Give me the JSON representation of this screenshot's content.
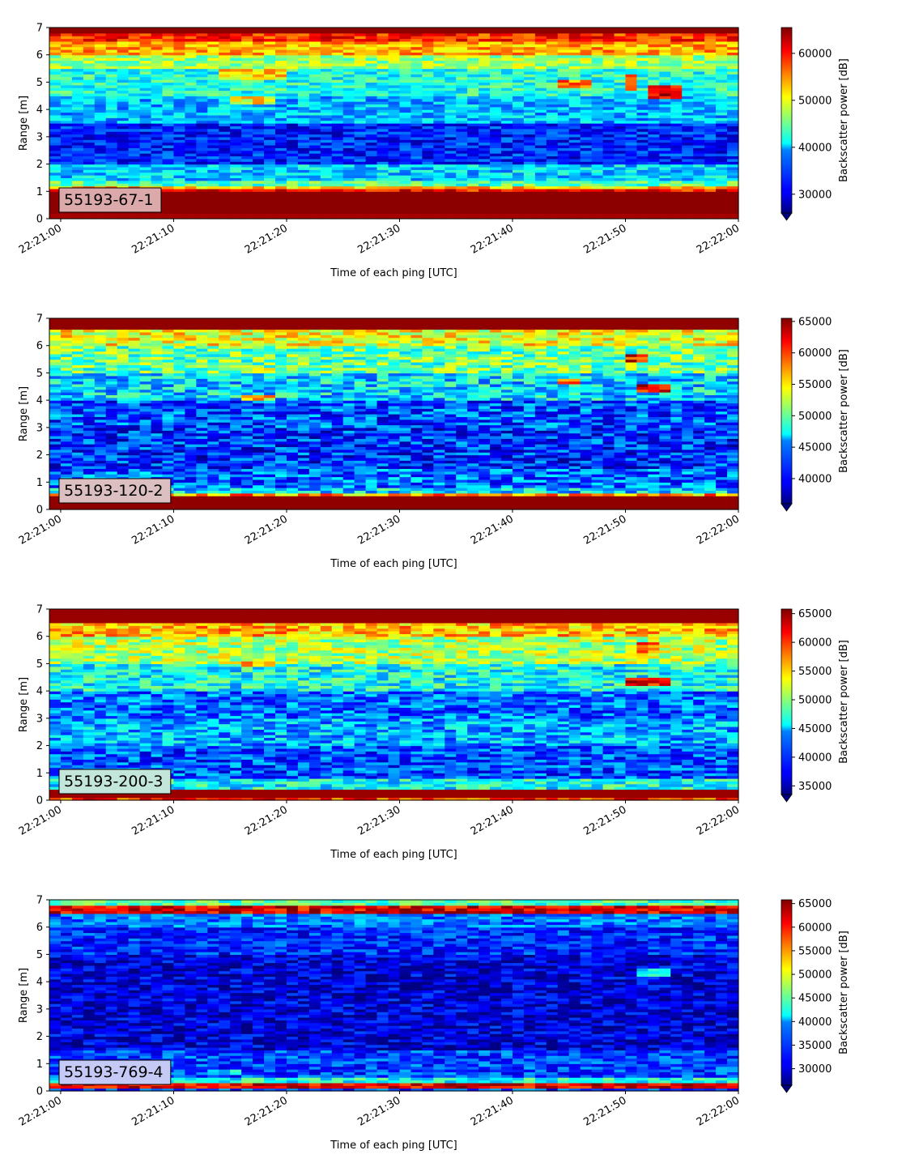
{
  "chart_data": [
    {
      "type": "heatmap",
      "label": "55193-67-1",
      "label_color": "#dba9a9",
      "xlabel": "Time of each ping [UTC]",
      "ylabel": "Range [m]",
      "x_ticks": [
        "22:21:00",
        "22:21:10",
        "22:21:20",
        "22:21:30",
        "22:21:40",
        "22:21:50",
        "22:22:00"
      ],
      "x_range": [
        "22:20:59",
        "22:22:00"
      ],
      "y_ticks": [
        0,
        1,
        2,
        3,
        4,
        5,
        6,
        7
      ],
      "ylim": [
        0,
        7
      ],
      "colorbar_label": "Backscatter power [dB]",
      "colorbar_ticks": [
        30000,
        40000,
        50000,
        60000
      ],
      "clim": [
        26000,
        65500
      ],
      "colormap": "jet",
      "extend": "min",
      "profile": [
        {
          "range": [
            0.0,
            0.2
          ],
          "value": 64000
        },
        {
          "range": [
            0.2,
            1.0
          ],
          "value": 65000
        },
        {
          "range": [
            1.0,
            1.1
          ],
          "value": 60000
        },
        {
          "range": [
            1.1,
            1.2
          ],
          "value": 53000
        },
        {
          "range": [
            1.2,
            1.4
          ],
          "value": 44000
        },
        {
          "range": [
            1.4,
            2.0
          ],
          "value": 39000
        },
        {
          "range": [
            2.0,
            3.5
          ],
          "value": 32000
        },
        {
          "range": [
            3.5,
            4.5
          ],
          "value": 38000
        },
        {
          "range": [
            4.5,
            5.5
          ],
          "value": 42000
        },
        {
          "range": [
            5.5,
            6.0
          ],
          "value": 47000
        },
        {
          "range": [
            6.0,
            6.5
          ],
          "value": 54000
        },
        {
          "range": [
            6.5,
            6.8
          ],
          "value": 59000
        },
        {
          "range": [
            6.8,
            7.0
          ],
          "value": 65000
        }
      ],
      "patches": [
        {
          "time": [
            "22:21:14",
            "22:21:20"
          ],
          "range": [
            5.1,
            5.5
          ],
          "value": 52000
        },
        {
          "time": [
            "22:21:15",
            "22:21:19"
          ],
          "range": [
            4.2,
            4.5
          ],
          "value": 51000
        },
        {
          "time": [
            "22:21:44",
            "22:21:47"
          ],
          "range": [
            4.8,
            5.1
          ],
          "value": 56000
        },
        {
          "time": [
            "22:21:50",
            "22:21:51"
          ],
          "range": [
            4.7,
            5.3
          ],
          "value": 59000
        },
        {
          "time": [
            "22:21:52",
            "22:21:55"
          ],
          "range": [
            4.4,
            4.9
          ],
          "value": 62000
        }
      ]
    },
    {
      "type": "heatmap",
      "label": "55193-120-2",
      "label_color": "#dcbfc1",
      "xlabel": "Time of each ping [UTC]",
      "ylabel": "Range [m]",
      "x_ticks": [
        "22:21:00",
        "22:21:10",
        "22:21:20",
        "22:21:30",
        "22:21:40",
        "22:21:50",
        "22:22:00"
      ],
      "x_range": [
        "22:20:59",
        "22:22:00"
      ],
      "y_ticks": [
        0,
        1,
        2,
        3,
        4,
        5,
        6,
        7
      ],
      "ylim": [
        0,
        7
      ],
      "colorbar_label": "Backscatter power [dB]",
      "colorbar_ticks": [
        40000,
        45000,
        50000,
        55000,
        60000,
        65000
      ],
      "clim": [
        36000,
        65500
      ],
      "colormap": "jet",
      "extend": "min",
      "profile": [
        {
          "range": [
            0.0,
            0.5
          ],
          "value": 65000
        },
        {
          "range": [
            0.5,
            0.6
          ],
          "value": 57000
        },
        {
          "range": [
            0.6,
            0.8
          ],
          "value": 46000
        },
        {
          "range": [
            0.8,
            1.5
          ],
          "value": 43000
        },
        {
          "range": [
            1.5,
            3.0
          ],
          "value": 41000
        },
        {
          "range": [
            3.0,
            4.0
          ],
          "value": 42000
        },
        {
          "range": [
            4.0,
            5.0
          ],
          "value": 46000
        },
        {
          "range": [
            5.0,
            6.0
          ],
          "value": 50000
        },
        {
          "range": [
            6.0,
            6.6
          ],
          "value": 54000
        },
        {
          "range": [
            6.6,
            7.0
          ],
          "value": 65000
        }
      ],
      "patches": [
        {
          "time": [
            "22:21:16",
            "22:21:19"
          ],
          "range": [
            4.0,
            4.2
          ],
          "value": 55000
        },
        {
          "time": [
            "22:21:17",
            "22:21:19"
          ],
          "range": [
            5.0,
            5.2
          ],
          "value": 58000
        },
        {
          "time": [
            "22:21:44",
            "22:21:46"
          ],
          "range": [
            4.6,
            4.8
          ],
          "value": 57000
        },
        {
          "time": [
            "22:21:50",
            "22:21:52"
          ],
          "range": [
            5.4,
            5.7
          ],
          "value": 62000
        },
        {
          "time": [
            "22:21:51",
            "22:21:54"
          ],
          "range": [
            4.3,
            4.6
          ],
          "value": 63000
        }
      ]
    },
    {
      "type": "heatmap",
      "label": "55193-200-3",
      "label_color": "#c3e6da",
      "xlabel": "Time of each ping [UTC]",
      "ylabel": "Range [m]",
      "x_ticks": [
        "22:21:00",
        "22:21:10",
        "22:21:20",
        "22:21:30",
        "22:21:40",
        "22:21:50",
        "22:22:00"
      ],
      "x_range": [
        "22:20:59",
        "22:22:00"
      ],
      "y_ticks": [
        0,
        1,
        2,
        3,
        4,
        5,
        6,
        7
      ],
      "ylim": [
        0,
        7
      ],
      "colorbar_label": "Backscatter power [dB]",
      "colorbar_ticks": [
        35000,
        40000,
        45000,
        50000,
        55000,
        60000,
        65000
      ],
      "clim": [
        33500,
        65800
      ],
      "colormap": "jet",
      "extend": "min",
      "profile": [
        {
          "range": [
            0.0,
            0.15
          ],
          "value": 60000
        },
        {
          "range": [
            0.15,
            0.4
          ],
          "value": 65000
        },
        {
          "range": [
            0.4,
            0.8
          ],
          "value": 46000
        },
        {
          "range": [
            0.8,
            2.0
          ],
          "value": 40000
        },
        {
          "range": [
            2.0,
            3.0
          ],
          "value": 43000
        },
        {
          "range": [
            3.0,
            4.0
          ],
          "value": 41000
        },
        {
          "range": [
            4.0,
            5.0
          ],
          "value": 46000
        },
        {
          "range": [
            5.0,
            6.0
          ],
          "value": 51000
        },
        {
          "range": [
            6.0,
            6.5
          ],
          "value": 56000
        },
        {
          "range": [
            6.5,
            7.0
          ],
          "value": 65000
        }
      ],
      "patches": [
        {
          "time": [
            "22:21:16",
            "22:21:19"
          ],
          "range": [
            4.9,
            5.1
          ],
          "value": 58000
        },
        {
          "time": [
            "22:21:50",
            "22:21:54"
          ],
          "range": [
            4.2,
            4.5
          ],
          "value": 62000
        },
        {
          "time": [
            "22:21:51",
            "22:21:53"
          ],
          "range": [
            5.4,
            5.8
          ],
          "value": 58000
        }
      ]
    },
    {
      "type": "heatmap",
      "label": "55193-769-4",
      "label_color": "#c5c9f6",
      "xlabel": "Time of each ping [UTC]",
      "ylabel": "Range [m]",
      "x_ticks": [
        "22:21:00",
        "22:21:10",
        "22:21:20",
        "22:21:30",
        "22:21:40",
        "22:21:50",
        "22:22:00"
      ],
      "x_range": [
        "22:20:59",
        "22:22:00"
      ],
      "y_ticks": [
        0,
        1,
        2,
        3,
        4,
        5,
        6,
        7
      ],
      "ylim": [
        0,
        7
      ],
      "colorbar_label": "Backscatter power [dB]",
      "colorbar_ticks": [
        30000,
        35000,
        40000,
        45000,
        50000,
        55000,
        60000,
        65000
      ],
      "clim": [
        26500,
        65800
      ],
      "colormap": "jet",
      "extend": "min",
      "profile": [
        {
          "range": [
            0.0,
            0.15
          ],
          "value": 34000
        },
        {
          "range": [
            0.15,
            0.3
          ],
          "value": 62000
        },
        {
          "range": [
            0.3,
            0.5
          ],
          "value": 42000
        },
        {
          "range": [
            0.5,
            1.5
          ],
          "value": 34000
        },
        {
          "range": [
            1.5,
            5.0
          ],
          "value": 30000
        },
        {
          "range": [
            5.0,
            6.0
          ],
          "value": 33000
        },
        {
          "range": [
            6.0,
            6.5
          ],
          "value": 36000
        },
        {
          "range": [
            6.5,
            6.8
          ],
          "value": 62000
        },
        {
          "range": [
            6.8,
            7.0
          ],
          "value": 44000
        }
      ],
      "patches": [
        {
          "time": [
            "22:21:51",
            "22:21:54"
          ],
          "range": [
            4.2,
            4.5
          ],
          "value": 42000
        },
        {
          "time": [
            "22:21:13",
            "22:21:16"
          ],
          "range": [
            0.6,
            0.8
          ],
          "value": 40000
        }
      ]
    }
  ]
}
